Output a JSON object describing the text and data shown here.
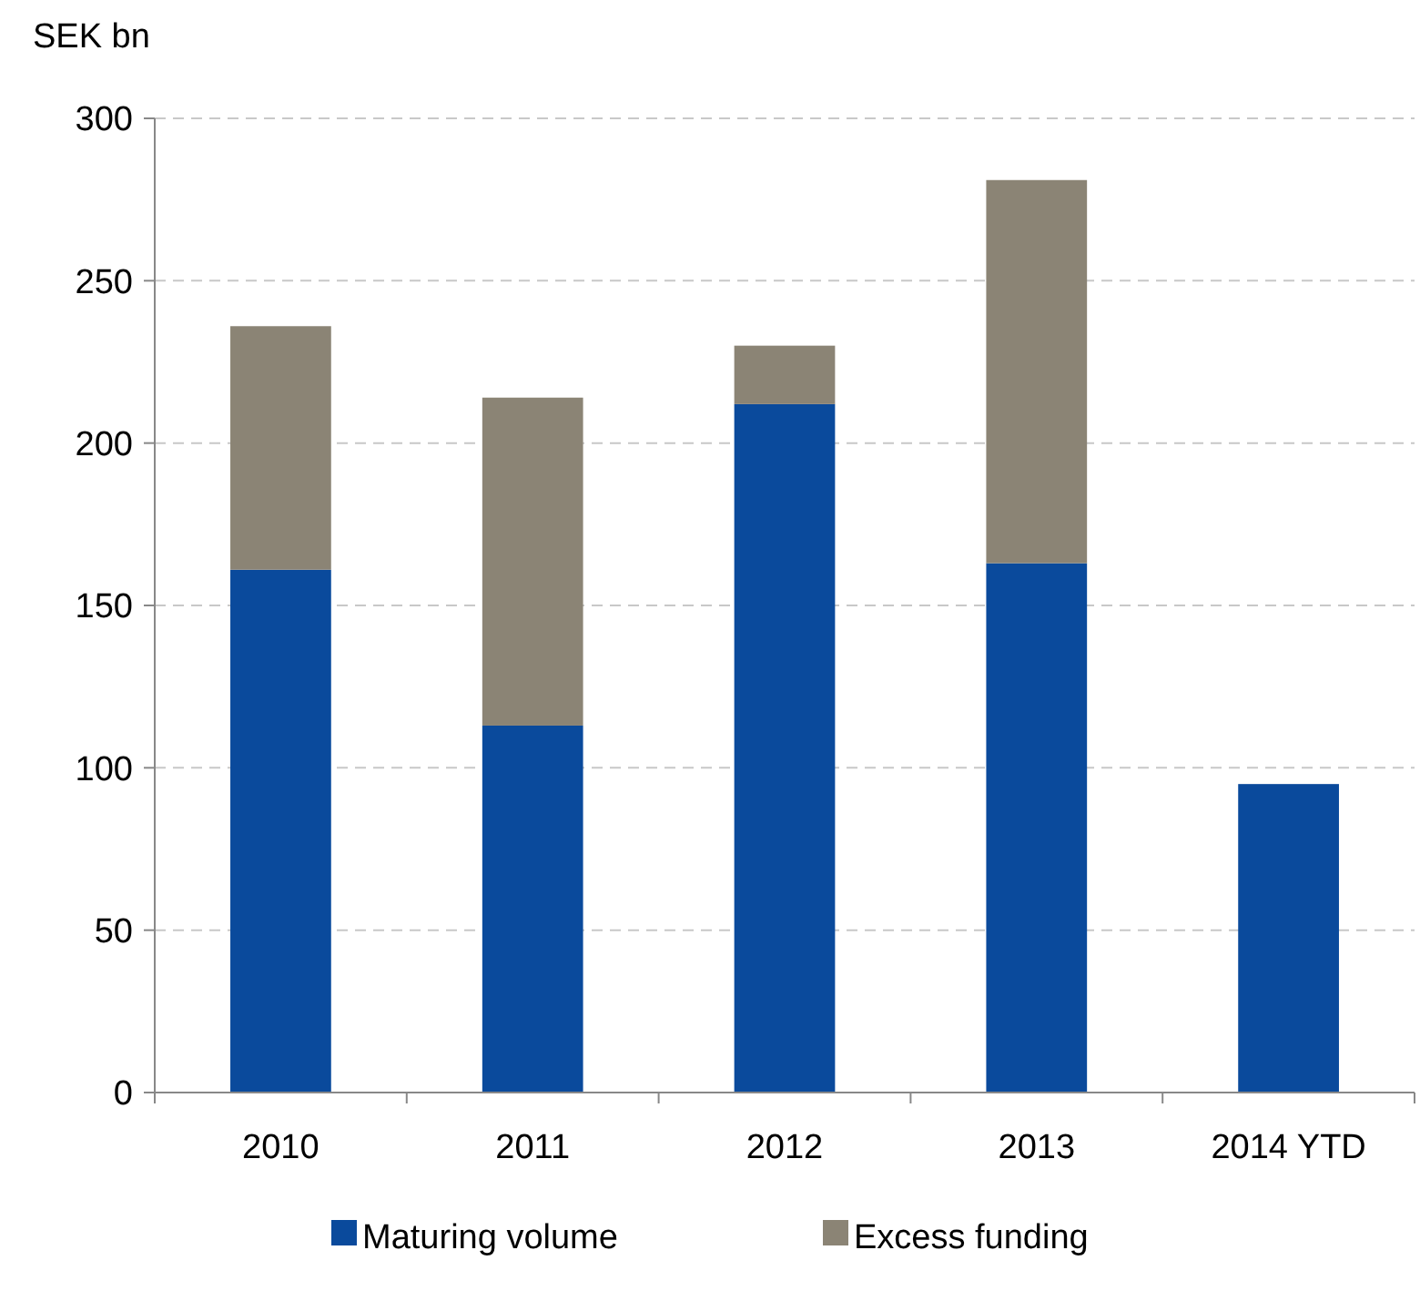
{
  "chart_data": {
    "type": "bar",
    "stacked": true,
    "ylabel": "SEK bn",
    "categories": [
      "2010",
      "2011",
      "2012",
      "2013",
      "2014 YTD"
    ],
    "series": [
      {
        "name": "Maturing volume",
        "color": "#0a4a9c",
        "values": [
          161,
          113,
          212,
          163,
          95
        ]
      },
      {
        "name": "Excess funding",
        "color": "#8b8475",
        "values": [
          75,
          101,
          18,
          118,
          null
        ]
      }
    ],
    "ylim": [
      0,
      300
    ],
    "yticks": [
      0,
      50,
      100,
      150,
      200,
      250,
      300
    ],
    "grid": "y",
    "legend": "bottom"
  }
}
